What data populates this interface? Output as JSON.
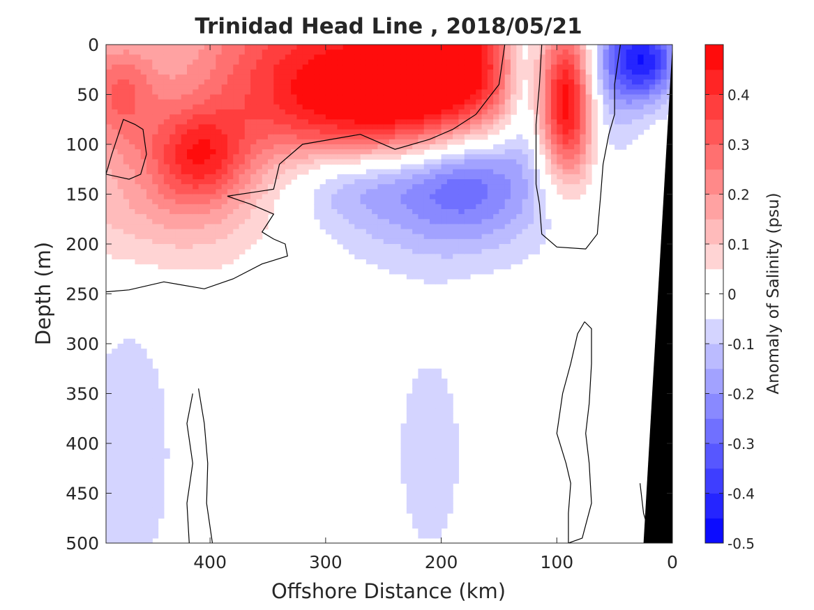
{
  "chart_data": {
    "type": "heatmap",
    "title": "Trinidad Head Line , 2018/05/21",
    "xlabel": "Offshore Distance (km)",
    "ylabel": "Depth (m)",
    "xlim": [
      490,
      0
    ],
    "ylim": [
      0,
      500
    ],
    "x_reversed": true,
    "y_reversed": true,
    "x_ticks": [
      400,
      300,
      200,
      100,
      0
    ],
    "y_ticks": [
      0,
      50,
      100,
      150,
      200,
      250,
      300,
      350,
      400,
      450,
      500
    ],
    "colorbar": {
      "label": "Anomaly of Salinity (psu)",
      "range": [
        -0.5,
        0.5
      ],
      "step": 0.05,
      "ticks": [
        -0.5,
        -0.4,
        -0.3,
        -0.2,
        -0.1,
        0,
        0.1,
        0.2,
        0.3,
        0.4
      ],
      "tick_labels": [
        "-0.5",
        "-0.4",
        "-0.3",
        "-0.2",
        "-0.1",
        "0",
        "0.1",
        "0.2",
        "0.3",
        "0.4"
      ],
      "colormap": "blue-white-red"
    },
    "features": [
      {
        "kind": "positive-anomaly",
        "peak": 0.4,
        "x_range": [
          490,
          140
        ],
        "depth_range": [
          0,
          250
        ]
      },
      {
        "kind": "positive-anomaly",
        "peak": 0.35,
        "x_range": [
          115,
          65
        ],
        "depth_range": [
          0,
          200
        ]
      },
      {
        "kind": "negative-anomaly",
        "peak": -0.4,
        "x_range": [
          70,
          15
        ],
        "depth_range": [
          0,
          60
        ]
      },
      {
        "kind": "negative-anomaly",
        "peak": -0.25,
        "x_range": [
          340,
          130
        ],
        "depth_range": [
          70,
          230
        ]
      },
      {
        "kind": "negative-anomaly",
        "peak": -0.1,
        "x_range": [
          490,
          430
        ],
        "depth_range": [
          310,
          500
        ]
      },
      {
        "kind": "negative-anomaly",
        "peak": -0.1,
        "x_range": [
          240,
          180
        ],
        "depth_range": [
          320,
          495
        ]
      }
    ],
    "bottom_topography": {
      "color": "#000000",
      "x_at_surface": 0,
      "x_at_500m": 25
    }
  }
}
